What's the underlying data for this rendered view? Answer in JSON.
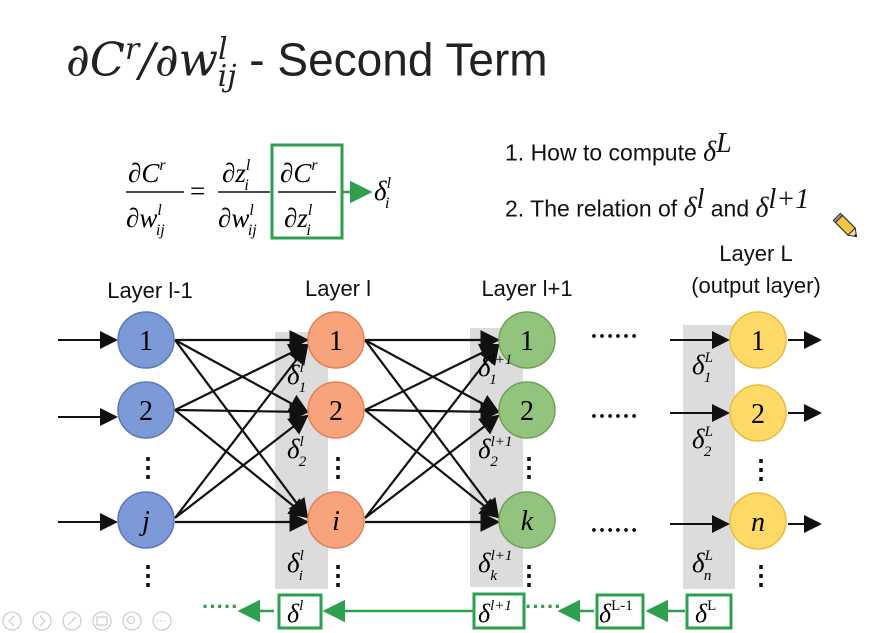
{
  "title": {
    "prefix": "∂C",
    "prefix_sup": "r",
    "mid": "/∂w",
    "w_sup": "l",
    "w_sub": "ij",
    "suffix": " - Second Term"
  },
  "formula": {
    "lhs_num": "∂C",
    "lhs_num_sup": "r",
    "lhs_den": "∂w",
    "lhs_den_sup": "l",
    "lhs_den_sub": "ij",
    "equals": "=",
    "mid_num": "∂z",
    "mid_num_sup": "l",
    "mid_num_sub": "i",
    "mid_den": "∂w",
    "mid_den_sup": "l",
    "mid_den_sub": "ij",
    "boxed_num": "∂C",
    "boxed_num_sup": "r",
    "boxed_den": "∂z",
    "boxed_den_sup": "l",
    "boxed_den_sub": "i",
    "result": "δ",
    "result_sup": "l",
    "result_sub": "i"
  },
  "notes": [
    {
      "text": "1. How to compute ",
      "sym": "δ",
      "sup": "L",
      "text2": "",
      "sym2": "",
      "sup2": ""
    },
    {
      "text": "2. The relation of ",
      "sym": "δ",
      "sup": "l",
      "text2": " and ",
      "sym2": "δ",
      "sup2": "l+1"
    }
  ],
  "layers": {
    "l_minus_1": {
      "label": "Layer l-1",
      "nodes": [
        "1",
        "2",
        "j"
      ]
    },
    "l": {
      "label": "Layer l",
      "nodes": [
        "1",
        "2",
        "i"
      ]
    },
    "l_plus_1": {
      "label": "Layer l+1",
      "nodes": [
        "1",
        "2",
        "k"
      ]
    },
    "output": {
      "label_line1": "Layer L",
      "label_line2": "(output layer)",
      "nodes": [
        "1",
        "2",
        "n"
      ]
    }
  },
  "deltas": {
    "l": [
      {
        "sup": "l",
        "sub": "1"
      },
      {
        "sup": "l",
        "sub": "2"
      },
      {
        "sup": "l",
        "sub": "i"
      }
    ],
    "l_plus_1": [
      {
        "sup": "l+1",
        "sub": "1"
      },
      {
        "sup": "l+1",
        "sub": "2"
      },
      {
        "sup": "l+1",
        "sub": "k"
      }
    ],
    "output": [
      {
        "sup": "L",
        "sub": "1"
      },
      {
        "sup": "L",
        "sub": "2"
      },
      {
        "sup": "L",
        "sub": "n"
      }
    ]
  },
  "backprop_chain": [
    {
      "sym": "δ",
      "sup": "l"
    },
    {
      "sym": "δ",
      "sup": "l+1"
    },
    {
      "sym": "δ",
      "sup": "L-1"
    },
    {
      "sym": "δ",
      "sup": "L"
    }
  ],
  "ellipsis": {
    "h": "……",
    "v": "⋮",
    "chain": "·····"
  },
  "colors": {
    "blue": "#7d9ad8",
    "orange": "#f7a47c",
    "green": "#93c47d",
    "yellow": "#ffd966",
    "box_green": "#2e9e4f",
    "shade": "#dcdcdc"
  }
}
